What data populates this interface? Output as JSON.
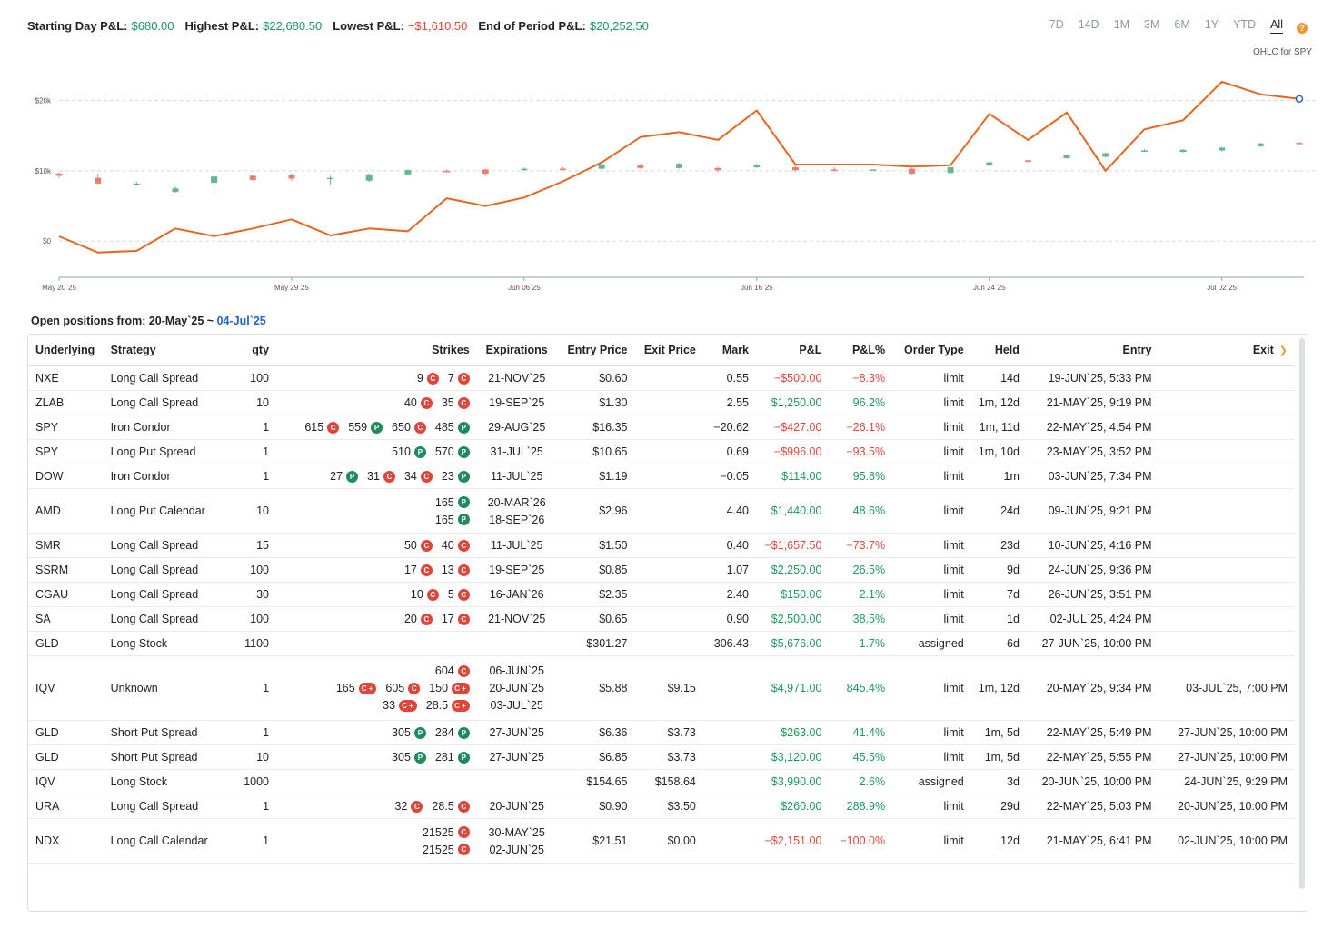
{
  "summary": {
    "starting_label": "Starting Day P&L:",
    "starting_value": "$680.00",
    "highest_label": "Highest P&L:",
    "highest_value": "$22,680.50",
    "lowest_label": "Lowest P&L:",
    "lowest_value": "−$1,610.50",
    "end_label": "End of Period P&L:",
    "end_value": "$20,252.50"
  },
  "ranges": [
    "7D",
    "14D",
    "1M",
    "3M",
    "6M",
    "1Y",
    "YTD",
    "All"
  ],
  "active_range": "All",
  "help_icon": "?",
  "ohlc_label": "OHLC for SPY",
  "chart_data": {
    "type": "line",
    "ylim": [
      -4500,
      25000
    ],
    "yticks": [
      {
        "v": 0,
        "label": "$0"
      },
      {
        "v": 10000,
        "label": "$10k"
      },
      {
        "v": 20000,
        "label": "$20k"
      }
    ],
    "xticks": [
      {
        "i": 0,
        "label": "May 20`25"
      },
      {
        "i": 6,
        "label": "May 29`25"
      },
      {
        "i": 12,
        "label": "Jun 06`25"
      },
      {
        "i": 18,
        "label": "Jun 16`25"
      },
      {
        "i": 24,
        "label": "Jun 24`25"
      },
      {
        "i": 30,
        "label": "Jul 02`25"
      }
    ],
    "pnl": [
      680,
      -1610,
      -1400,
      1800,
      700,
      1800,
      3100,
      800,
      1800,
      1400,
      6100,
      5000,
      6200,
      8500,
      11200,
      14800,
      15500,
      14400,
      18600,
      10900,
      10900,
      10900,
      10600,
      10800,
      18100,
      14400,
      18300,
      10000,
      15900,
      17200,
      22680,
      20900,
      20252
    ],
    "candles": [
      {
        "o": 9600,
        "c": 9300,
        "h": 9800,
        "l": 9000
      },
      {
        "o": 9000,
        "c": 8200,
        "h": 9600,
        "l": 8100
      },
      {
        "o": 8000,
        "c": 8200,
        "h": 8500,
        "l": 7900
      },
      {
        "o": 7000,
        "c": 7500,
        "h": 7800,
        "l": 6900
      },
      {
        "o": 8300,
        "c": 9200,
        "h": 9300,
        "l": 7200
      },
      {
        "o": 9300,
        "c": 8700,
        "h": 9400,
        "l": 8600
      },
      {
        "o": 9400,
        "c": 8900,
        "h": 9600,
        "l": 8600
      },
      {
        "o": 8900,
        "c": 9000,
        "h": 9300,
        "l": 8000
      },
      {
        "o": 8600,
        "c": 9500,
        "h": 9600,
        "l": 8400
      },
      {
        "o": 9500,
        "c": 10100,
        "h": 10200,
        "l": 9400
      },
      {
        "o": 10000,
        "c": 9900,
        "h": 10200,
        "l": 9800
      },
      {
        "o": 10200,
        "c": 9600,
        "h": 10300,
        "l": 9300
      },
      {
        "o": 10100,
        "c": 10300,
        "h": 10500,
        "l": 10000
      },
      {
        "o": 10300,
        "c": 10200,
        "h": 10500,
        "l": 10100
      },
      {
        "o": 10300,
        "c": 10900,
        "h": 11000,
        "l": 10200
      },
      {
        "o": 10900,
        "c": 10400,
        "h": 11000,
        "l": 10300
      },
      {
        "o": 10400,
        "c": 11000,
        "h": 11100,
        "l": 10300
      },
      {
        "o": 10400,
        "c": 10100,
        "h": 10600,
        "l": 9800
      },
      {
        "o": 10500,
        "c": 10900,
        "h": 11000,
        "l": 10400
      },
      {
        "o": 10500,
        "c": 10100,
        "h": 10700,
        "l": 9900
      },
      {
        "o": 10200,
        "c": 10100,
        "h": 10500,
        "l": 9900
      },
      {
        "o": 10200,
        "c": 10200,
        "h": 10200,
        "l": 10200
      },
      {
        "o": 10300,
        "c": 9600,
        "h": 10400,
        "l": 9500
      },
      {
        "o": 9700,
        "c": 10500,
        "h": 10600,
        "l": 9600
      },
      {
        "o": 10800,
        "c": 11200,
        "h": 11300,
        "l": 10700
      },
      {
        "o": 11500,
        "c": 11300,
        "h": 11600,
        "l": 11200
      },
      {
        "o": 11800,
        "c": 12200,
        "h": 12300,
        "l": 11700
      },
      {
        "o": 12000,
        "c": 12500,
        "h": 12600,
        "l": 11900
      },
      {
        "o": 12900,
        "c": 12900,
        "h": 13100,
        "l": 12700
      },
      {
        "o": 12700,
        "c": 13000,
        "h": 13100,
        "l": 12600
      },
      {
        "o": 12900,
        "c": 13300,
        "h": 13400,
        "l": 12800
      },
      {
        "o": 13500,
        "c": 13900,
        "h": 14000,
        "l": 13400
      },
      {
        "o": 14000,
        "c": 13900,
        "h": 14100,
        "l": 13800
      }
    ],
    "colors": {
      "line": "#e8651e",
      "up": "#62b88c",
      "down": "#ef7b6e",
      "end_marker": "#2462c9"
    }
  },
  "positions_header": {
    "prefix": "Open positions from: 20-May`25 ~ ",
    "to": "04-Jul`25"
  },
  "columns": {
    "underlying": "Underlying",
    "strategy": "Strategy",
    "qty": "qty",
    "strikes": "Strikes",
    "expirations": "Expirations",
    "entry_price": "Entry Price",
    "exit_price": "Exit Price",
    "mark": "Mark",
    "pnl": "P&L",
    "pnl_pct": "P&L%",
    "order_type": "Order Type",
    "held": "Held",
    "entry": "Entry",
    "exit": "Exit"
  },
  "rows": [
    {
      "u": "NXE",
      "s": "Long Call Spread",
      "q": "100",
      "legs": [
        [
          [
            "9",
            "C"
          ],
          [
            "7",
            "C"
          ]
        ]
      ],
      "exps": [
        "21-NOV`25"
      ],
      "ep": "$0.60",
      "xp": "",
      "m": "0.55",
      "pnl": "−$500.00",
      "pct": "−8.3%",
      "neg": true,
      "ot": "limit",
      "h": "14d",
      "en": "19-JUN`25, 5:33 PM",
      "ex": ""
    },
    {
      "u": "ZLAB",
      "s": "Long Call Spread",
      "q": "10",
      "legs": [
        [
          [
            "40",
            "C"
          ],
          [
            "35",
            "C"
          ]
        ]
      ],
      "exps": [
        "19-SEP`25"
      ],
      "ep": "$1.30",
      "xp": "",
      "m": "2.55",
      "pnl": "$1,250.00",
      "pct": "96.2%",
      "neg": false,
      "ot": "limit",
      "h": "1m, 12d",
      "en": "21-MAY`25, 9:19 PM",
      "ex": ""
    },
    {
      "u": "SPY",
      "s": "Iron Condor",
      "q": "1",
      "legs": [
        [
          [
            "615",
            "C"
          ],
          [
            "559",
            "P"
          ],
          [
            "650",
            "C"
          ],
          [
            "485",
            "P"
          ]
        ]
      ],
      "exps": [
        "29-AUG`25"
      ],
      "ep": "$16.35",
      "xp": "",
      "m": "−20.62",
      "pnl": "−$427.00",
      "pct": "−26.1%",
      "neg": true,
      "ot": "limit",
      "h": "1m, 11d",
      "en": "22-MAY`25, 4:54 PM",
      "ex": ""
    },
    {
      "u": "SPY",
      "s": "Long Put Spread",
      "q": "1",
      "legs": [
        [
          [
            "510",
            "P"
          ],
          [
            "570",
            "P"
          ]
        ]
      ],
      "exps": [
        "31-JUL`25"
      ],
      "ep": "$10.65",
      "xp": "",
      "m": "0.69",
      "pnl": "−$996.00",
      "pct": "−93.5%",
      "neg": true,
      "ot": "limit",
      "h": "1m, 10d",
      "en": "23-MAY`25, 3:52 PM",
      "ex": ""
    },
    {
      "u": "DOW",
      "s": "Iron Condor",
      "q": "1",
      "legs": [
        [
          [
            "27",
            "P"
          ],
          [
            "31",
            "C"
          ],
          [
            "34",
            "C"
          ],
          [
            "23",
            "P"
          ]
        ]
      ],
      "exps": [
        "11-JUL`25"
      ],
      "ep": "$1.19",
      "xp": "",
      "m": "−0.05",
      "pnl": "$114.00",
      "pct": "95.8%",
      "neg": false,
      "ot": "limit",
      "h": "1m",
      "en": "03-JUN`25, 7:34 PM",
      "ex": ""
    },
    {
      "u": "AMD",
      "s": "Long Put Calendar",
      "q": "10",
      "legs": [
        [
          [
            "165",
            "P"
          ]
        ],
        [
          [
            "165",
            "P"
          ]
        ]
      ],
      "exps": [
        "20-MAR`26",
        "18-SEP`26"
      ],
      "ep": "$2.96",
      "xp": "",
      "m": "4.40",
      "pnl": "$1,440.00",
      "pct": "48.6%",
      "neg": false,
      "ot": "limit",
      "h": "24d",
      "en": "09-JUN`25, 9:21 PM",
      "ex": ""
    },
    {
      "u": "SMR",
      "s": "Long Call Spread",
      "q": "15",
      "legs": [
        [
          [
            "50",
            "C"
          ],
          [
            "40",
            "C"
          ]
        ]
      ],
      "exps": [
        "11-JUL`25"
      ],
      "ep": "$1.50",
      "xp": "",
      "m": "0.40",
      "pnl": "−$1,657.50",
      "pct": "−73.7%",
      "neg": true,
      "ot": "limit",
      "h": "23d",
      "en": "10-JUN`25, 4:16 PM",
      "ex": ""
    },
    {
      "u": "SSRM",
      "s": "Long Call Spread",
      "q": "100",
      "legs": [
        [
          [
            "17",
            "C"
          ],
          [
            "13",
            "C"
          ]
        ]
      ],
      "exps": [
        "19-SEP`25"
      ],
      "ep": "$0.85",
      "xp": "",
      "m": "1.07",
      "pnl": "$2,250.00",
      "pct": "26.5%",
      "neg": false,
      "ot": "limit",
      "h": "9d",
      "en": "24-JUN`25, 9:36 PM",
      "ex": ""
    },
    {
      "u": "CGAU",
      "s": "Long Call Spread",
      "q": "30",
      "legs": [
        [
          [
            "10",
            "C"
          ],
          [
            "5",
            "C"
          ]
        ]
      ],
      "exps": [
        "16-JAN`26"
      ],
      "ep": "$2.35",
      "xp": "",
      "m": "2.40",
      "pnl": "$150.00",
      "pct": "2.1%",
      "neg": false,
      "ot": "limit",
      "h": "7d",
      "en": "26-JUN`25, 3:51 PM",
      "ex": ""
    },
    {
      "u": "SA",
      "s": "Long Call Spread",
      "q": "100",
      "legs": [
        [
          [
            "20",
            "C"
          ],
          [
            "17",
            "C"
          ]
        ]
      ],
      "exps": [
        "21-NOV`25"
      ],
      "ep": "$0.65",
      "xp": "",
      "m": "0.90",
      "pnl": "$2,500.00",
      "pct": "38.5%",
      "neg": false,
      "ot": "limit",
      "h": "1d",
      "en": "02-JUL`25, 4:24 PM",
      "ex": ""
    },
    {
      "u": "GLD",
      "s": "Long Stock",
      "q": "1100",
      "legs": [],
      "exps": [],
      "ep": "$301.27",
      "xp": "",
      "m": "306.43",
      "pnl": "$5,676.00",
      "pct": "1.7%",
      "neg": false,
      "ot": "assigned",
      "h": "6d",
      "en": "27-JUN`25, 10:00 PM",
      "ex": ""
    },
    {
      "u": "IQV",
      "s": "Unknown",
      "q": "1",
      "legs": [
        [
          [
            "604",
            "C"
          ]
        ],
        [
          [
            "165",
            "C+"
          ],
          [
            "605",
            "C"
          ],
          [
            "150",
            "C+"
          ]
        ],
        [
          [
            "33",
            "C+"
          ],
          [
            "28.5",
            "C+"
          ]
        ]
      ],
      "exps": [
        "06-JUN`25",
        "20-JUN`25",
        "03-JUL`25"
      ],
      "ep": "$5.88",
      "xp": "$9.15",
      "m": "",
      "pnl": "$4,971.00",
      "pct": "845.4%",
      "neg": false,
      "ot": "limit",
      "h": "1m, 12d",
      "en": "20-MAY`25, 9:34 PM",
      "ex": "03-JUL`25, 7:00 PM"
    },
    {
      "u": "GLD",
      "s": "Short Put Spread",
      "q": "1",
      "legs": [
        [
          [
            "305",
            "P"
          ],
          [
            "284",
            "P"
          ]
        ]
      ],
      "exps": [
        "27-JUN`25"
      ],
      "ep": "$6.36",
      "xp": "$3.73",
      "m": "",
      "pnl": "$263.00",
      "pct": "41.4%",
      "neg": false,
      "ot": "limit",
      "h": "1m, 5d",
      "en": "22-MAY`25, 5:49 PM",
      "ex": "27-JUN`25, 10:00 PM"
    },
    {
      "u": "GLD",
      "s": "Short Put Spread",
      "q": "10",
      "legs": [
        [
          [
            "305",
            "P"
          ],
          [
            "281",
            "P"
          ]
        ]
      ],
      "exps": [
        "27-JUN`25"
      ],
      "ep": "$6.85",
      "xp": "$3.73",
      "m": "",
      "pnl": "$3,120.00",
      "pct": "45.5%",
      "neg": false,
      "ot": "limit",
      "h": "1m, 5d",
      "en": "22-MAY`25, 5:55 PM",
      "ex": "27-JUN`25, 10:00 PM"
    },
    {
      "u": "IQV",
      "s": "Long Stock",
      "q": "1000",
      "legs": [],
      "exps": [],
      "ep": "$154.65",
      "xp": "$158.64",
      "m": "",
      "pnl": "$3,990.00",
      "pct": "2.6%",
      "neg": false,
      "ot": "assigned",
      "h": "3d",
      "en": "20-JUN`25, 10:00 PM",
      "ex": "24-JUN`25, 9:29 PM"
    },
    {
      "u": "URA",
      "s": "Long Call Spread",
      "q": "1",
      "legs": [
        [
          [
            "32",
            "C"
          ],
          [
            "28.5",
            "C"
          ]
        ]
      ],
      "exps": [
        "20-JUN`25"
      ],
      "ep": "$0.90",
      "xp": "$3.50",
      "m": "",
      "pnl": "$260.00",
      "pct": "288.9%",
      "neg": false,
      "ot": "limit",
      "h": "29d",
      "en": "22-MAY`25, 5:03 PM",
      "ex": "20-JUN`25, 10:00 PM"
    },
    {
      "u": "NDX",
      "s": "Long Call Calendar",
      "q": "1",
      "legs": [
        [
          [
            "21525",
            "C"
          ]
        ],
        [
          [
            "21525",
            "C"
          ]
        ]
      ],
      "exps": [
        "30-MAY`25",
        "02-JUN`25"
      ],
      "ep": "$21.51",
      "xp": "$0.00",
      "m": "",
      "pnl": "−$2,151.00",
      "pct": "−100.0%",
      "neg": true,
      "ot": "limit",
      "h": "12d",
      "en": "21-MAY`25, 6:41 PM",
      "ex": "02-JUN`25, 10:00 PM"
    }
  ]
}
